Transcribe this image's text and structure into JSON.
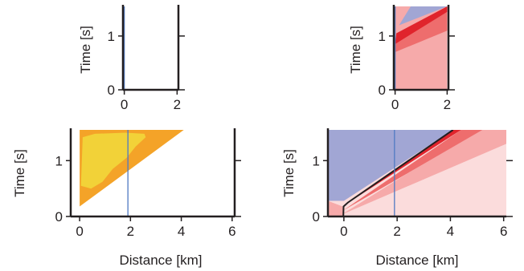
{
  "colors": {
    "orange": "#f4a328",
    "yellow": "#f2d238",
    "blue_fill": "#a1a6d4",
    "blue_line": "#4f7ac2",
    "red_dark": "#e0242c",
    "red_mid": "#ee6d6d",
    "red_light": "#f6aaaa",
    "red_pale": "#fbdcdc",
    "axis": "#231f20"
  },
  "chart_data": [
    {
      "id": "top-left",
      "type": "area",
      "ylabel": "Time [s]",
      "xlim": [
        -0.05,
        2.05
      ],
      "ylim": [
        0,
        1.55
      ],
      "xticks": [
        0,
        2
      ],
      "yticks": [
        0,
        1
      ],
      "series": [
        {
          "kind": "vline",
          "x": 0.0,
          "color": "#4f7ac2"
        }
      ]
    },
    {
      "id": "top-right",
      "type": "area",
      "ylabel": "Time [s]",
      "xlim": [
        -0.05,
        2.05
      ],
      "ylim": [
        0,
        1.55
      ],
      "xticks": [
        0,
        2
      ],
      "yticks": [
        0,
        1
      ],
      "series": [
        {
          "kind": "fill",
          "color": "#f6aaaa",
          "points": [
            [
              0,
              0
            ],
            [
              2,
              0
            ],
            [
              2,
              1.55
            ],
            [
              0,
              1.55
            ]
          ]
        },
        {
          "kind": "fill",
          "color": "#ee6d6d",
          "points": [
            [
              0,
              0.7
            ],
            [
              2,
              1.1
            ],
            [
              2,
              1.55
            ],
            [
              0,
              0.95
            ]
          ]
        },
        {
          "kind": "fill",
          "color": "#e0242c",
          "points": [
            [
              0,
              0.85
            ],
            [
              2,
              1.45
            ],
            [
              2,
              1.55
            ],
            [
              0.05,
              1.05
            ]
          ]
        },
        {
          "kind": "fill",
          "color": "#a1a6d4",
          "points": [
            [
              0.15,
              1.2
            ],
            [
              2,
              1.55
            ],
            [
              0.6,
              1.55
            ]
          ]
        },
        {
          "kind": "vline",
          "x": 0.0,
          "color": "#4f7ac2"
        }
      ]
    },
    {
      "id": "bottom-left",
      "type": "area",
      "xlabel": "Distance [km]",
      "ylabel": "Time [s]",
      "xlim": [
        -0.35,
        6.1
      ],
      "ylim": [
        0,
        1.55
      ],
      "xticks": [
        0,
        2,
        4,
        6
      ],
      "yticks": [
        0,
        1
      ],
      "series": [
        {
          "kind": "fill",
          "color": "#f4a328",
          "points": [
            [
              0,
              0.18
            ],
            [
              0,
              1.55
            ],
            [
              4.1,
              1.55
            ]
          ]
        },
        {
          "kind": "fill",
          "color": "#f2d238",
          "points": [
            [
              0.05,
              0.55
            ],
            [
              0.12,
              1.42
            ],
            [
              0.6,
              1.48
            ],
            [
              1.8,
              1.5
            ],
            [
              2.55,
              1.48
            ],
            [
              2.6,
              1.42
            ],
            [
              2.2,
              1.25
            ],
            [
              1.85,
              1.05
            ],
            [
              1.3,
              0.85
            ],
            [
              0.9,
              0.62
            ],
            [
              0.45,
              0.5
            ]
          ]
        },
        {
          "kind": "vline",
          "x": 1.9,
          "color": "#4f7ac2"
        }
      ]
    },
    {
      "id": "bottom-right",
      "type": "area",
      "xlabel": "Distance [km]",
      "ylabel": "Time [s]",
      "xlim": [
        -0.6,
        6.1
      ],
      "ylim": [
        0,
        1.55
      ],
      "xticks": [
        0,
        2,
        4,
        6
      ],
      "yticks": [
        0,
        1
      ],
      "series": [
        {
          "kind": "fill",
          "color": "#fbdcdc",
          "points": [
            [
              -0.6,
              0
            ],
            [
              6.1,
              0
            ],
            [
              6.1,
              1.55
            ],
            [
              -0.6,
              1.55
            ]
          ]
        },
        {
          "kind": "fill",
          "color": "#a1a6d4",
          "points": [
            [
              -0.6,
              0.28
            ],
            [
              -0.6,
              1.55
            ],
            [
              4.1,
              1.55
            ],
            [
              0,
              0.28
            ]
          ]
        },
        {
          "kind": "fill",
          "color": "#fbdcdc",
          "points": [
            [
              0,
              0
            ],
            [
              6.1,
              0.95
            ],
            [
              6.1,
              1.55
            ]
          ]
        },
        {
          "kind": "fill",
          "color": "#f6aaaa",
          "points": [
            [
              -0.1,
              0.03
            ],
            [
              6.1,
              1.3
            ],
            [
              6.1,
              1.55
            ],
            [
              5.0,
              1.55
            ]
          ]
        },
        {
          "kind": "fill",
          "color": "#ee6d6d",
          "points": [
            [
              -0.05,
              0.1
            ],
            [
              5.2,
              1.55
            ],
            [
              4.4,
              1.55
            ]
          ]
        },
        {
          "kind": "fill",
          "color": "#e0242c",
          "points": [
            [
              -0.05,
              0.18
            ],
            [
              4.4,
              1.55
            ],
            [
              4.1,
              1.55
            ]
          ]
        },
        {
          "kind": "fill",
          "color": "#f6aaaa",
          "points": [
            [
              -0.6,
              0
            ],
            [
              0,
              0
            ],
            [
              -0.05,
              0.18
            ],
            [
              -0.6,
              0.28
            ]
          ]
        },
        {
          "kind": "polyline",
          "color": "#231f20",
          "points": [
            [
              -0.02,
              0
            ],
            [
              -0.01,
              0.18
            ],
            [
              0.15,
              0.25
            ],
            [
              4.1,
              1.55
            ]
          ]
        },
        {
          "kind": "vline",
          "x": 1.9,
          "color": "#4f7ac2"
        }
      ]
    }
  ]
}
